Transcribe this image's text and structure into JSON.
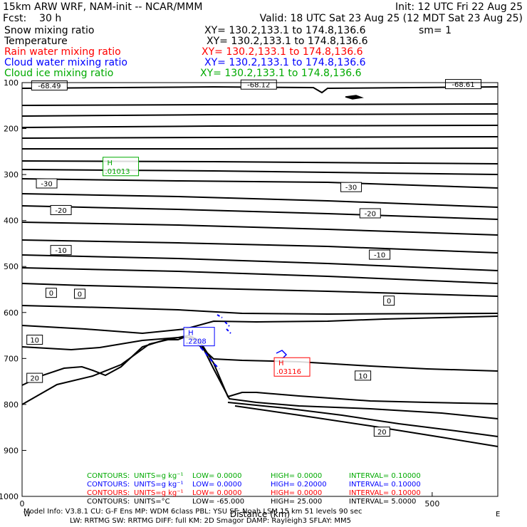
{
  "header": {
    "title": "15km ARW WRF, NAM-init -- NCAR/MMM",
    "init": "Init: 12 UTC Fri 22 Aug 25",
    "fcst": "Fcst:    30 h",
    "valid": "Valid: 18 UTC Sat 23 Aug 25 (12 MDT Sat 23 Aug 25)",
    "fields": [
      {
        "name": "Snow mixing ratio",
        "xy": "XY= 130.2,133.1 to 174.8,136.6",
        "extra": "sm= 1",
        "color": "#000000"
      },
      {
        "name": "Temperature",
        "xy": "XY= 130.2,133.1 to 174.8,136.6",
        "extra": "",
        "color": "#000000"
      },
      {
        "name": "Rain water mixing ratio",
        "xy": "XY= 130.2,133.1 to 174.8,136.6",
        "extra": "",
        "color": "#ff0000"
      },
      {
        "name": "Cloud water mixing ratio",
        "xy": "XY= 130.2,133.1 to 174.8,136.6",
        "extra": "",
        "color": "#0000ff"
      },
      {
        "name": "Cloud ice mixing ratio",
        "xy": "XY= 130.2,133.1 to 174.8,136.6",
        "extra": "",
        "color": "#00aa00"
      }
    ]
  },
  "chart_data": {
    "type": "contour",
    "xlabel": "Distance (km)",
    "x_ticks": [
      {
        "value": 0,
        "label": "0"
      },
      {
        "value": 500,
        "label": "500"
      }
    ],
    "x_end_label": "E",
    "x_start_label": "W",
    "y_ticks": [
      "100",
      "200",
      "300",
      "400",
      "500",
      "600",
      "700",
      "800",
      "900",
      "1000"
    ],
    "yrange": [
      100,
      1000
    ],
    "isotherm_labels": [
      {
        "label": "-68.49",
        "x": 0.02,
        "p": 107
      },
      {
        "label": "-68.12",
        "x": 0.46,
        "p": 105
      },
      {
        "label": "-68.61",
        "x": 0.89,
        "p": 104
      },
      {
        "label": "-30",
        "x": 0.03,
        "p": 320
      },
      {
        "label": "-30",
        "x": 0.67,
        "p": 328
      },
      {
        "label": "-20",
        "x": 0.06,
        "p": 378
      },
      {
        "label": "-20",
        "x": 0.71,
        "p": 385
      },
      {
        "label": "-10",
        "x": 0.06,
        "p": 465
      },
      {
        "label": "-10",
        "x": 0.73,
        "p": 475
      },
      {
        "label": "0",
        "x": 0.05,
        "p": 558
      },
      {
        "label": "0",
        "x": 0.11,
        "p": 560
      },
      {
        "label": "0",
        "x": 0.76,
        "p": 575
      },
      {
        "label": "10",
        "x": 0.01,
        "p": 660
      },
      {
        "label": "10",
        "x": 0.7,
        "p": 738
      },
      {
        "label": "20",
        "x": 0.01,
        "p": 743
      },
      {
        "label": "20",
        "x": 0.74,
        "p": 860
      }
    ],
    "highs": [
      {
        "field": "Cloud ice mixing ratio",
        "label": "H",
        "value": ".01013",
        "color": "#00aa00",
        "x": 0.17,
        "p": 284
      },
      {
        "field": "Cloud water mixing ratio",
        "label": "H",
        "value": ".2208",
        "color": "#0000ff",
        "x": 0.34,
        "p": 654
      },
      {
        "field": "Rain water mixing ratio",
        "label": "H",
        "value": ".03116",
        "color": "#ff0000",
        "x": 0.53,
        "p": 720
      }
    ],
    "legend": [
      {
        "color": "#00aa00",
        "contours": "CONTOURS:",
        "units": "UNITS=g kg⁻¹",
        "low": "LOW=  0.0000",
        "high": "HIGH=  0.0000",
        "interval": "INTERVAL=  0.10000"
      },
      {
        "color": "#0000ff",
        "contours": "CONTOURS:",
        "units": "UNITS=g kg⁻¹",
        "low": "LOW=  0.0000",
        "high": "HIGH= 0.20000",
        "interval": "INTERVAL=  0.10000"
      },
      {
        "color": "#ff0000",
        "contours": "CONTOURS:",
        "units": "UNITS=g kg⁻¹",
        "low": "LOW=  0.0000",
        "high": "HIGH=  0.0000",
        "interval": "INTERVAL=  0.10000"
      },
      {
        "color": "#000000",
        "contours": "CONTOURS:",
        "units": "UNITS=°C",
        "low": "LOW=  -65.000",
        "high": "HIGH=  25.000",
        "interval": "INTERVAL=  5.0000"
      }
    ]
  },
  "footer": {
    "line1": "Model Info: V3.8.1    CU: G-F Ens  MP: WDM 6class  PBL: YSU     SF: Noah LSM    15 km   51 levels   90 sec",
    "line2": "LW: RRTMG   SW: RRTMG   DIFF: full   KM: 2D Smagor DAMP: Rayleigh3  SFLAY: MM5"
  }
}
